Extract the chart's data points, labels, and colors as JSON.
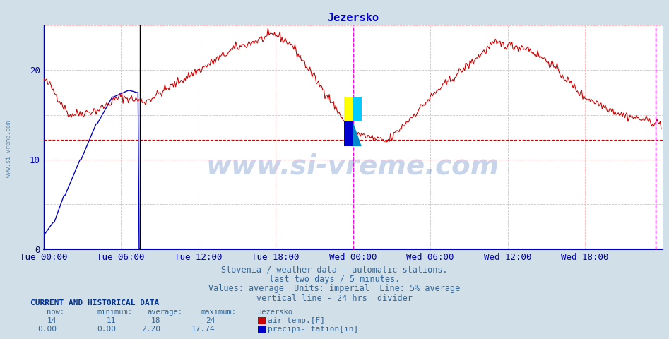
{
  "title": "Jezersko",
  "bg_color": "#d0dfe8",
  "plot_bg_color": "#ffffff",
  "grid_color": "#ffb0b0",
  "xlim": [
    0,
    576
  ],
  "ylim": [
    0,
    25
  ],
  "yticks": [
    0,
    10,
    20
  ],
  "xtick_labels": [
    "Tue 00:00",
    "Tue 06:00",
    "Tue 12:00",
    "Tue 18:00",
    "Wed 00:00",
    "Wed 06:00",
    "Wed 12:00",
    "Wed 18:00"
  ],
  "xtick_positions": [
    0,
    72,
    144,
    216,
    288,
    360,
    432,
    504
  ],
  "avg_line_y": 12.2,
  "avg_line_color": "#cc0000",
  "divider_x": 90,
  "magenta_line1_x": 288,
  "magenta_line2_x": 570,
  "title_color": "#0000cc",
  "tick_color": "#0000aa",
  "watermark_text": "www.si-vreme.com",
  "watermark_color": "#2255aa",
  "watermark_alpha": 0.25,
  "info_text1": "Slovenia / weather data - automatic stations.",
  "info_text2": "last two days / 5 minutes.",
  "info_text3": "Values: average  Units: imperial  Line: 5% average",
  "info_text4": "vertical line - 24 hrs  divider",
  "sidebar_text": "www.si-vreme.com",
  "current_data_label": "CURRENT AND HISTORICAL DATA",
  "col_headers": [
    "now:",
    "minimum:",
    "average:",
    "maximum:",
    "Jezersko"
  ],
  "row1": [
    "14",
    "11",
    "18",
    "24",
    "air temp.[F]"
  ],
  "row2": [
    "0.00",
    "0.00",
    "2.20",
    "17.74",
    "precipi- tation[in]"
  ],
  "red_swatch": "#cc0000",
  "blue_swatch": "#0000cc",
  "temp_color": "#cc0000",
  "precip_color": "#0000cc"
}
